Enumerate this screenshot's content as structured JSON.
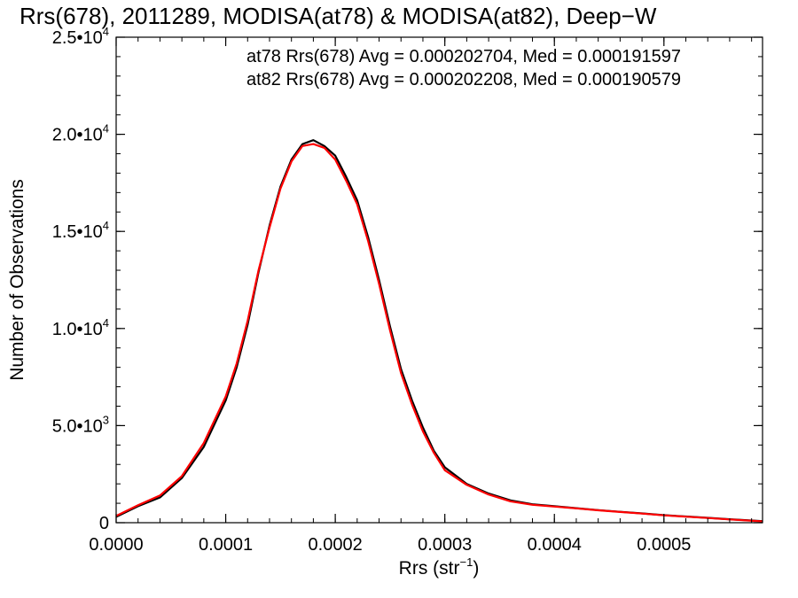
{
  "chart_data": {
    "type": "line",
    "title": "Rrs(678), 2011289, MODISA(at78) & MODISA(at82), Deep−W",
    "xlabel": "Rrs (str",
    "xlabel_sup": "−1",
    "xlabel_close": ")",
    "ylabel": "Number of Observations",
    "xlim": [
      0.0,
      0.00059
    ],
    "ylim": [
      0,
      25000
    ],
    "grid": false,
    "x_ticks": [
      {
        "value": 0.0,
        "label": "0.0000"
      },
      {
        "value": 0.0001,
        "label": "0.0001"
      },
      {
        "value": 0.0002,
        "label": "0.0002"
      },
      {
        "value": 0.0003,
        "label": "0.0003"
      },
      {
        "value": 0.0004,
        "label": "0.0004"
      },
      {
        "value": 0.0005,
        "label": "0.0005"
      }
    ],
    "y_ticks": [
      {
        "value": 0,
        "label": "0",
        "exp": ""
      },
      {
        "value": 5000,
        "label": "5.0•10",
        "exp": "3"
      },
      {
        "value": 10000,
        "label": "1.0•10",
        "exp": "4"
      },
      {
        "value": 15000,
        "label": "1.5•10",
        "exp": "4"
      },
      {
        "value": 20000,
        "label": "2.0•10",
        "exp": "4"
      },
      {
        "value": 25000,
        "label": "2.5•10",
        "exp": "4"
      }
    ],
    "annotations": [
      {
        "text": "at78 Rrs(678) Avg = 0.000202704, Med = 0.000191597",
        "color": "#000000"
      },
      {
        "text": "at82 Rrs(678) Avg = 0.000202208, Med = 0.000190579",
        "color": "#ff0000"
      }
    ],
    "series": [
      {
        "color": "#000000",
        "x": [
          0.0,
          2e-05,
          4e-05,
          6e-05,
          8e-05,
          0.0001,
          0.00011,
          0.00012,
          0.00013,
          0.00014,
          0.00015,
          0.00016,
          0.00017,
          0.00018,
          0.00019,
          0.0002,
          0.00021,
          0.00022,
          0.00023,
          0.00024,
          0.00025,
          0.00026,
          0.00027,
          0.00028,
          0.00029,
          0.0003,
          0.00032,
          0.00034,
          0.00036,
          0.00038,
          0.0004,
          0.00042,
          0.00044,
          0.00046,
          0.00048,
          0.0005,
          0.00052,
          0.00054,
          0.00056,
          0.00059
        ],
        "y": [
          300,
          850,
          1300,
          2300,
          3900,
          6300,
          8000,
          10200,
          12900,
          15300,
          17300,
          18700,
          19500,
          19700,
          19400,
          18900,
          17800,
          16600,
          14700,
          12500,
          10100,
          7900,
          6300,
          4900,
          3700,
          2850,
          2000,
          1500,
          1150,
          950,
          850,
          750,
          650,
          560,
          480,
          390,
          320,
          250,
          180,
          80
        ]
      },
      {
        "color": "#ff0000",
        "x": [
          0.0,
          2e-05,
          4e-05,
          6e-05,
          8e-05,
          0.0001,
          0.00011,
          0.00012,
          0.00013,
          0.00014,
          0.00015,
          0.00016,
          0.00017,
          0.00018,
          0.00019,
          0.0002,
          0.00021,
          0.00022,
          0.00023,
          0.00024,
          0.00025,
          0.00026,
          0.00027,
          0.00028,
          0.00029,
          0.0003,
          0.00032,
          0.00034,
          0.00036,
          0.00038,
          0.0004,
          0.00042,
          0.00044,
          0.00046,
          0.00048,
          0.0005,
          0.00052,
          0.00054,
          0.00056,
          0.00059
        ],
        "y": [
          350,
          900,
          1400,
          2400,
          4100,
          6500,
          8200,
          10400,
          13000,
          15200,
          17200,
          18600,
          19400,
          19500,
          19300,
          18700,
          17600,
          16400,
          14500,
          12300,
          9900,
          7700,
          6100,
          4700,
          3600,
          2700,
          1950,
          1450,
          1100,
          920,
          830,
          740,
          640,
          550,
          470,
          380,
          310,
          240,
          170,
          70
        ]
      }
    ]
  }
}
